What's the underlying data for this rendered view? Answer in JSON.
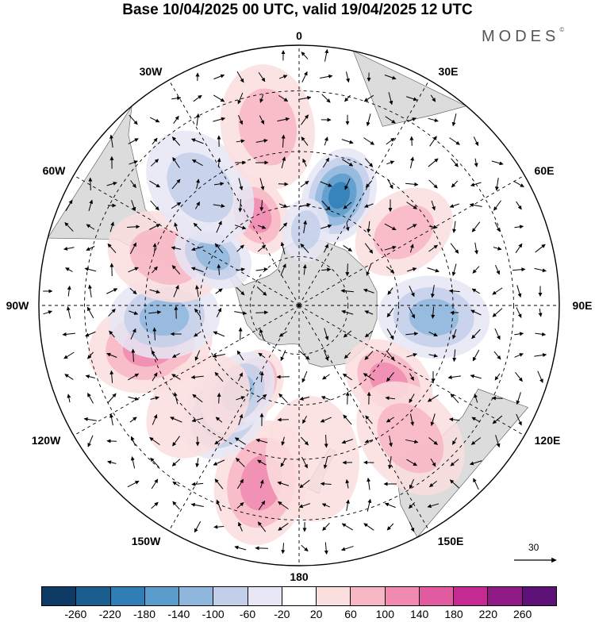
{
  "title": "Base 10/04/2025 00 UTC, valid 19/04/2025 12 UTC",
  "brand": "MODES",
  "brand_mark": "©",
  "longitude_labels": {
    "lon_0": "0",
    "lon_30e": "30E",
    "lon_60e": "60E",
    "lon_90e": "90E",
    "lon_120e": "120E",
    "lon_150e": "150E",
    "lon_180": "180",
    "lon_150w": "150W",
    "lon_120w": "120W",
    "lon_90w": "90W",
    "lon_60w": "60W",
    "lon_30w": "30W"
  },
  "reference_vector_label": "30",
  "colorbar": {
    "colors": [
      "#0d3b66",
      "#1a5d8f",
      "#2f7fb6",
      "#5a9ccc",
      "#8fb7dd",
      "#c3cfe9",
      "#e6e6f4",
      "#ffffff",
      "#fbdede",
      "#f7b6c4",
      "#f08ab0",
      "#e25aa0",
      "#c42a92",
      "#901b86",
      "#5e1278"
    ],
    "labels": [
      "-260",
      "-220",
      "-180",
      "-140",
      "-100",
      "-60",
      "-20",
      "20",
      "60",
      "100",
      "140",
      "180",
      "220",
      "260"
    ]
  },
  "map": {
    "projection": "south-polar-stereographic",
    "land_color": "#dcdcdc",
    "anomalies": [
      {
        "lon": -168,
        "lat": -38,
        "value": 150
      },
      {
        "lon": -105,
        "lat": -45,
        "value": 140
      },
      {
        "lon": -145,
        "lat": -52,
        "value": -180
      },
      {
        "lon": -150,
        "lat": -62,
        "value": 160
      },
      {
        "lon": -145,
        "lat": -58,
        "value": -140
      },
      {
        "lon": -95,
        "lat": -50,
        "value": -120
      },
      {
        "lon": -70,
        "lat": -48,
        "value": 90
      },
      {
        "lon": -60,
        "lat": -60,
        "value": -120
      },
      {
        "lon": -25,
        "lat": -60,
        "value": 130
      },
      {
        "lon": -40,
        "lat": -45,
        "value": -80
      },
      {
        "lon": -10,
        "lat": -38,
        "value": 110
      },
      {
        "lon": 20,
        "lat": -55,
        "value": -220
      },
      {
        "lon": 5,
        "lat": -67,
        "value": -100
      },
      {
        "lon": 55,
        "lat": -52,
        "value": 110
      },
      {
        "lon": 95,
        "lat": -50,
        "value": -130
      },
      {
        "lon": 130,
        "lat": -55,
        "value": 120
      },
      {
        "lon": 140,
        "lat": -40,
        "value": 80
      },
      {
        "lon": 175,
        "lat": -45,
        "value": 50
      },
      {
        "lon": -135,
        "lat": -48,
        "value": 60
      }
    ]
  }
}
